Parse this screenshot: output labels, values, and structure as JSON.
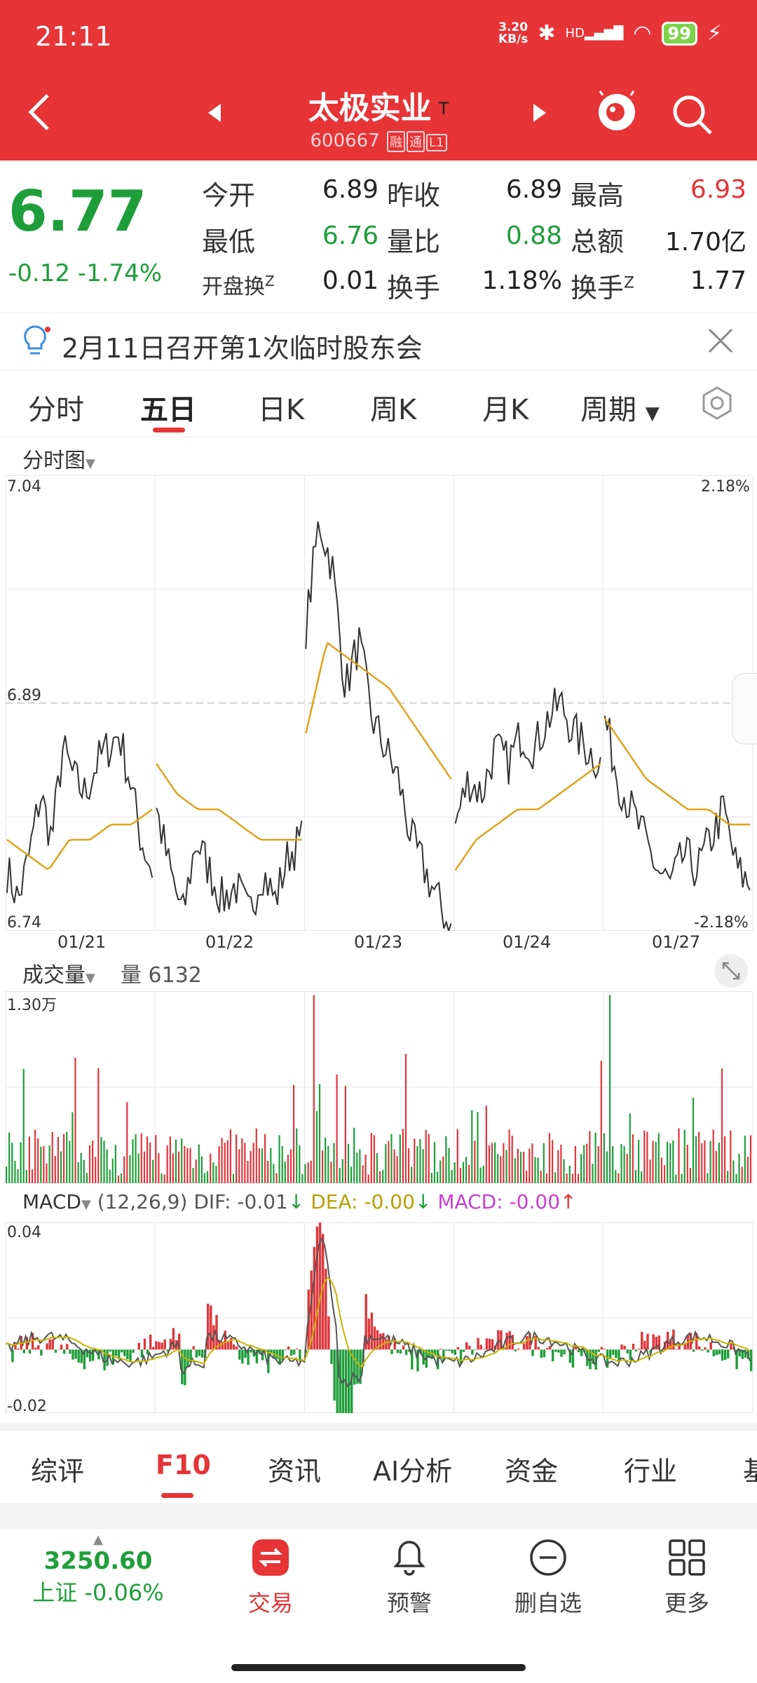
{
  "status": {
    "time": "21:11",
    "netspeed_top": "3.20",
    "netspeed_bottom": "KB/s",
    "hd": "HD",
    "battery": "99"
  },
  "header": {
    "name": "太极实业",
    "flag": "T",
    "code": "600667",
    "tags": [
      "融",
      "通",
      "L1"
    ]
  },
  "quote": {
    "price": "6.77",
    "change": "-0.12",
    "change_pct": "-1.74%",
    "rows": [
      [
        {
          "label": "今开",
          "value": "6.89",
          "color": "dark"
        },
        {
          "label": "昨收",
          "value": "6.89",
          "color": "dark"
        },
        {
          "label": "最高",
          "value": "6.93",
          "color": "red"
        }
      ],
      [
        {
          "label": "最低",
          "value": "6.76",
          "color": "green"
        },
        {
          "label": "量比",
          "value": "0.88",
          "color": "green"
        },
        {
          "label": "总额",
          "value": "1.70亿",
          "color": "dark"
        }
      ],
      [
        {
          "label": "开盘换",
          "sup": "Z",
          "value": "0.01",
          "color": "dark"
        },
        {
          "label": "换手",
          "value": "1.18%",
          "color": "dark"
        },
        {
          "label": "换手",
          "sup": "Z",
          "value": "1.77",
          "color": "dark"
        }
      ]
    ]
  },
  "notice": {
    "text": "2月11日召开第1次临时股东会"
  },
  "tabs": {
    "items": [
      "分时",
      "五日",
      "日K",
      "周K",
      "月K",
      "周期"
    ],
    "active": 1
  },
  "price_chart": {
    "title": "分时图",
    "left_top": "7.04",
    "left_mid": "6.89",
    "left_bottom": "6.74",
    "right_top": "2.18%",
    "right_bottom": "-2.18%",
    "dates": [
      "01/21",
      "01/22",
      "01/23",
      "01/24",
      "01/27"
    ]
  },
  "volume_chart": {
    "title": "成交量",
    "vol_label": "量 6132",
    "max_label": "1.30万"
  },
  "macd": {
    "title": "MACD",
    "params": "(12,26,9)",
    "dif": "DIF: -0.01",
    "dea": "DEA: -0.00",
    "macd": "MACD: -0.00",
    "top": "0.04",
    "bottom": "-0.02"
  },
  "bottom_tabs": {
    "items": [
      "综评",
      "F10",
      "资讯",
      "AI分析",
      "资金",
      "行业",
      "基"
    ],
    "active": 1
  },
  "nav": {
    "index_value": "3250.60",
    "index_label": "上证 -0.06%",
    "items": [
      {
        "label": "交易"
      },
      {
        "label": "预警"
      },
      {
        "label": "删自选"
      },
      {
        "label": "更多"
      }
    ]
  },
  "chart_data": {
    "type": "line",
    "title": "",
    "categories": [
      "01/21",
      "01/22",
      "01/23",
      "01/24",
      "01/27"
    ],
    "price_ylim": [
      6.74,
      7.04
    ],
    "prev_close": 6.89,
    "series": [
      {
        "values_per_day": [
          [
            6.78,
            6.76,
            6.79,
            6.83,
            6.8,
            6.86,
            6.84,
            6.83,
            6.85,
            6.86,
            6.87,
            6.84,
            6.8,
            6.78
          ],
          [
            6.82,
            6.78,
            6.75,
            6.8,
            6.78,
            6.76,
            6.77,
            6.75,
            6.78,
            6.76,
            6.79,
            6.8
          ],
          [
            6.94,
            7.01,
            6.98,
            6.9,
            6.93,
            6.88,
            6.86,
            6.84,
            6.8,
            6.78,
            6.76,
            6.74
          ],
          [
            6.81,
            6.84,
            6.83,
            6.86,
            6.85,
            6.87,
            6.86,
            6.88,
            6.89,
            6.87,
            6.86,
            6.85
          ],
          [
            6.88,
            6.84,
            6.82,
            6.8,
            6.78,
            6.77,
            6.79,
            6.78,
            6.8,
            6.82,
            6.78,
            6.77
          ]
        ]
      },
      {
        "values_per_day": [
          [
            6.8,
            6.79,
            6.78,
            6.8,
            6.8,
            6.81,
            6.81,
            6.82
          ],
          [
            6.85,
            6.83,
            6.82,
            6.82,
            6.81,
            6.8,
            6.8,
            6.8
          ],
          [
            6.87,
            6.93,
            6.92,
            6.91,
            6.9,
            6.88,
            6.86,
            6.84
          ],
          [
            6.78,
            6.8,
            6.81,
            6.82,
            6.82,
            6.83,
            6.84,
            6.85
          ],
          [
            6.88,
            6.86,
            6.84,
            6.83,
            6.82,
            6.82,
            6.81,
            6.81
          ]
        ]
      }
    ],
    "volume_ylim": [
      0,
      13000
    ],
    "macd_ylim": [
      -0.02,
      0.04
    ]
  }
}
